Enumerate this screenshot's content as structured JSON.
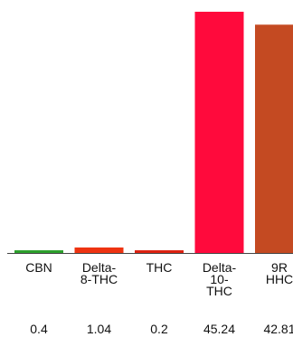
{
  "chart_data": {
    "type": "bar",
    "categories": [
      "CBN",
      "Delta-\n8-THC",
      "THC",
      "Delta-\n10-\nTHC",
      "9R\nHHC"
    ],
    "values": [
      0.4,
      1.04,
      0.2,
      45.24,
      42.81
    ],
    "value_labels": [
      "0.4",
      "1.04",
      "0.2",
      "45.24",
      "42.81"
    ],
    "colors": [
      "#2ca02c",
      "#ee3311",
      "#dd2211",
      "#ff0a3c",
      "#c44a22"
    ],
    "axis_color": "#444444",
    "title": "",
    "xlabel": "",
    "ylabel": "",
    "ylim": [
      0,
      45.24
    ],
    "grid": false,
    "legend": "none"
  }
}
